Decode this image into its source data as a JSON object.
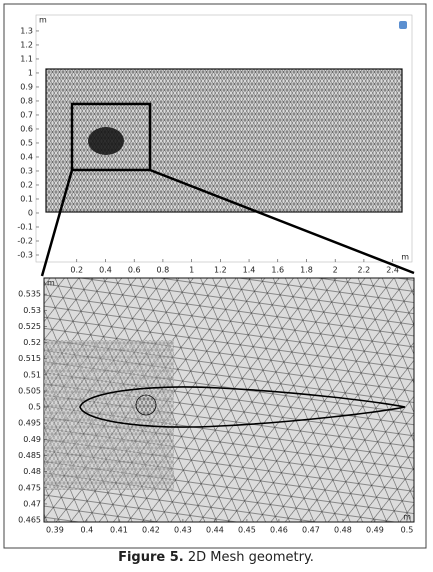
{
  "figure": {
    "plots": [
      {
        "xlim": [
          -0.084,
          2.535
        ],
        "ylim": [
          -0.35,
          1.414
        ],
        "xticks": [
          0.2,
          0.4,
          0.6,
          0.8,
          1,
          1.2,
          1.4,
          1.6,
          1.8,
          2,
          2.2,
          2.4
        ],
        "yticks": [
          -0.3,
          -0.2,
          -0.1,
          0,
          0.1,
          0.2,
          0.3,
          0.4,
          0.5,
          0.6,
          0.7,
          0.8,
          0.9,
          1,
          1.1,
          1.2,
          1.3
        ],
        "x_unit": "m",
        "y_unit": "m"
      },
      {
        "xlim": [
          0.3866,
          0.5022
        ],
        "ylim": [
          0.4644,
          0.54
        ],
        "xticks": [
          0.39,
          0.4,
          0.41,
          0.42,
          0.43,
          0.44,
          0.45,
          0.46,
          0.47,
          0.48,
          0.49,
          0.5
        ],
        "yticks": [
          0.465,
          0.47,
          0.475,
          0.48,
          0.485,
          0.49,
          0.495,
          0.5,
          0.505,
          0.51,
          0.515,
          0.52,
          0.525,
          0.53,
          0.535
        ],
        "x_unit": "m",
        "y_unit": "m"
      }
    ],
    "caption": {
      "label": "Figure 5.",
      "text": "2D Mesh geometry."
    }
  }
}
